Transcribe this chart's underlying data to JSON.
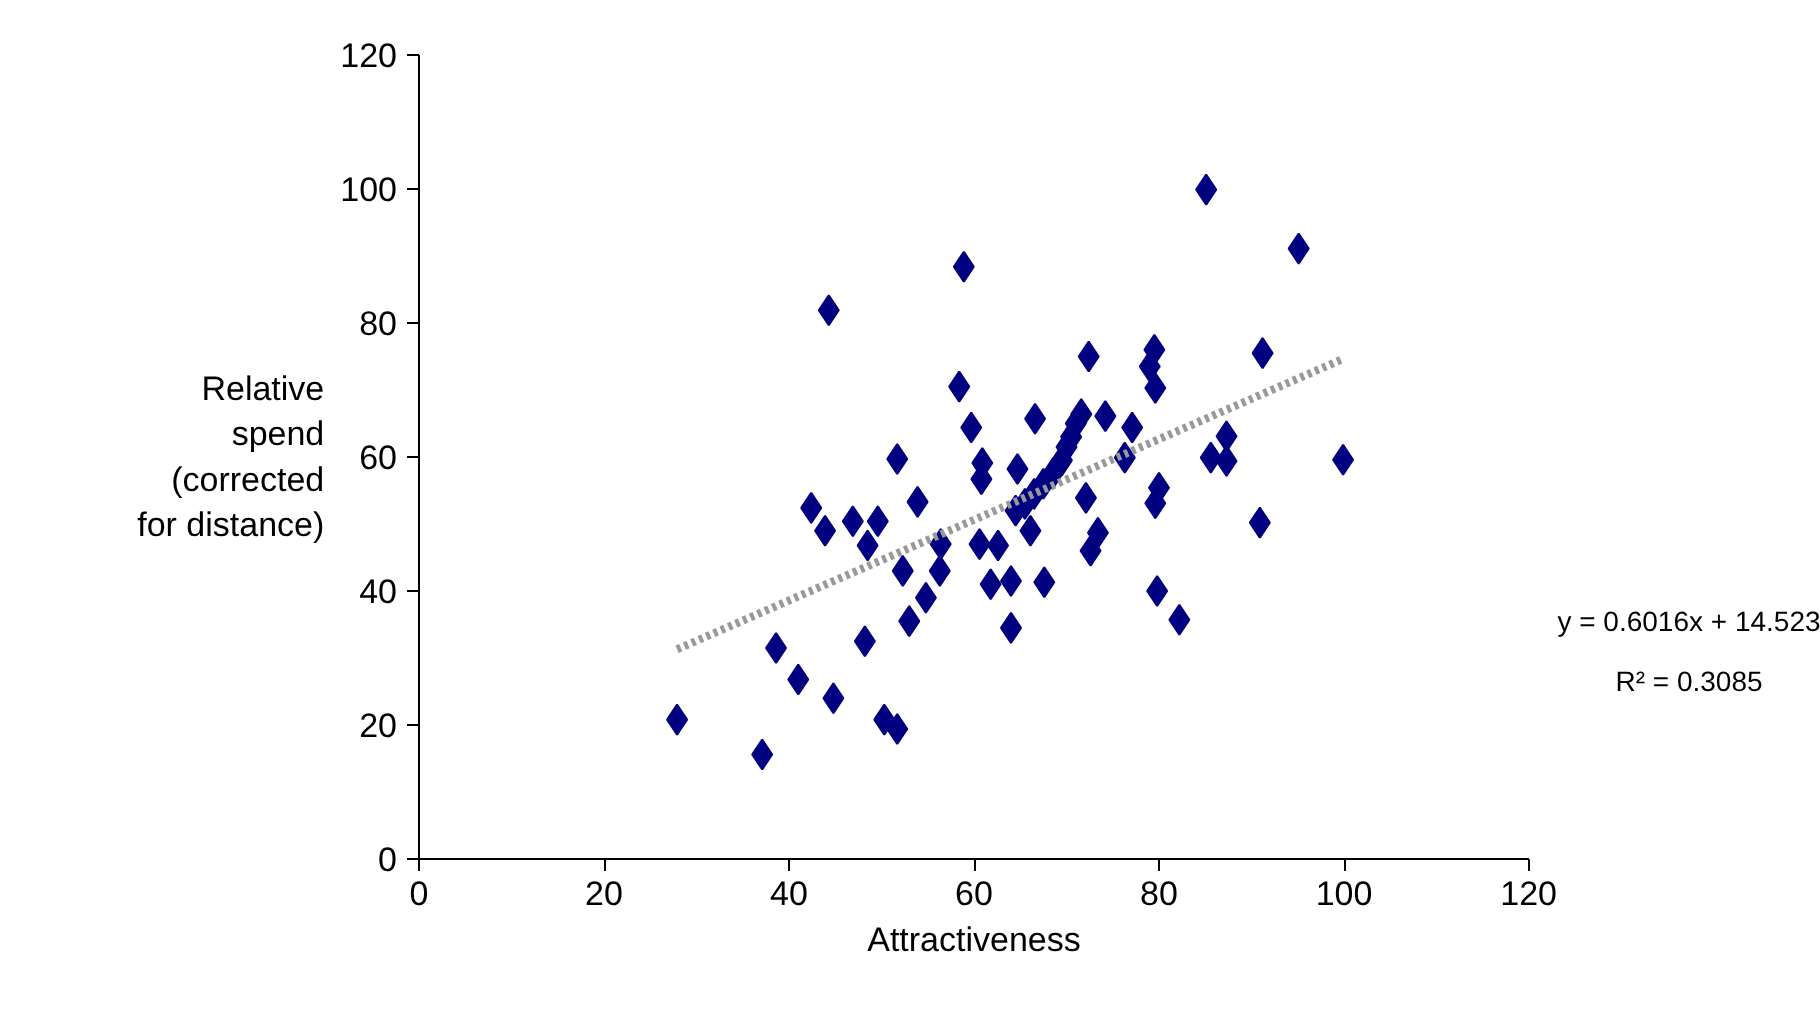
{
  "chart_data": {
    "type": "scatter",
    "xlabel": "Attractiveness",
    "ylabel": "Relative\nspend\n(corrected\nfor distance)",
    "xlim": [
      0,
      120
    ],
    "xticks": [
      0,
      20,
      40,
      60,
      80,
      100,
      120
    ],
    "ylim": [
      0,
      120
    ],
    "yticks": [
      0,
      20,
      40,
      60,
      80,
      100,
      120
    ],
    "grid": false,
    "marker": "diamond",
    "series": [
      {
        "color": "#000080",
        "x": [
          58.9,
          44.3,
          58.4,
          59.7,
          66.6,
          51.7,
          60.9,
          60.8,
          64.7,
          53.9,
          42.4,
          43.9,
          46.9,
          49.6,
          48.5,
          56.4,
          60.6,
          62.6,
          66.1,
          52.3,
          56.3,
          54.8,
          61.8,
          64.0,
          67.6,
          53.0,
          64.0,
          48.2,
          38.6,
          41.0,
          44.8,
          50.3,
          51.7,
          27.9,
          37.1,
          85.1,
          95.1,
          72.4,
          79.5,
          79.0,
          79.6,
          91.2,
          71.6,
          74.2,
          77.1,
          76.3,
          87.3,
          85.6,
          87.3,
          99.9,
          72.1,
          80.0,
          79.6,
          73.4,
          72.6,
          90.9,
          79.8,
          82.2,
          64.5,
          65.5,
          66.5,
          67.5,
          68.5,
          69.5,
          70.0,
          70.5,
          71.0
        ],
        "values": [
          88.4,
          81.9,
          70.5,
          64.4,
          65.7,
          59.7,
          59.1,
          56.7,
          58.2,
          53.3,
          52.4,
          49.0,
          50.4,
          50.4,
          46.8,
          47.0,
          47.0,
          46.8,
          49.0,
          43.0,
          43.0,
          39.0,
          41.0,
          41.5,
          41.3,
          35.5,
          34.5,
          32.5,
          31.5,
          26.8,
          24.0,
          20.8,
          19.4,
          20.8,
          15.6,
          99.9,
          91.1,
          75.0,
          76.0,
          73.5,
          70.3,
          75.5,
          66.4,
          66.1,
          64.4,
          59.9,
          63.1,
          59.9,
          59.4,
          59.6,
          53.9,
          55.4,
          53.1,
          48.7,
          46.0,
          50.2,
          40.0,
          35.7,
          52.0,
          53.0,
          54.5,
          56.0,
          57.5,
          59.5,
          61.5,
          63.0,
          65.0
        ]
      },
      {
        "type": "line",
        "color": "#999999",
        "line_style": "dotted",
        "marker": "none",
        "x": [
          27.9,
          100
        ],
        "values": [
          31.3,
          74.7
        ]
      }
    ],
    "annotations": [
      "y = 0.6016x + 14.523",
      "R² = 0.3085"
    ]
  }
}
